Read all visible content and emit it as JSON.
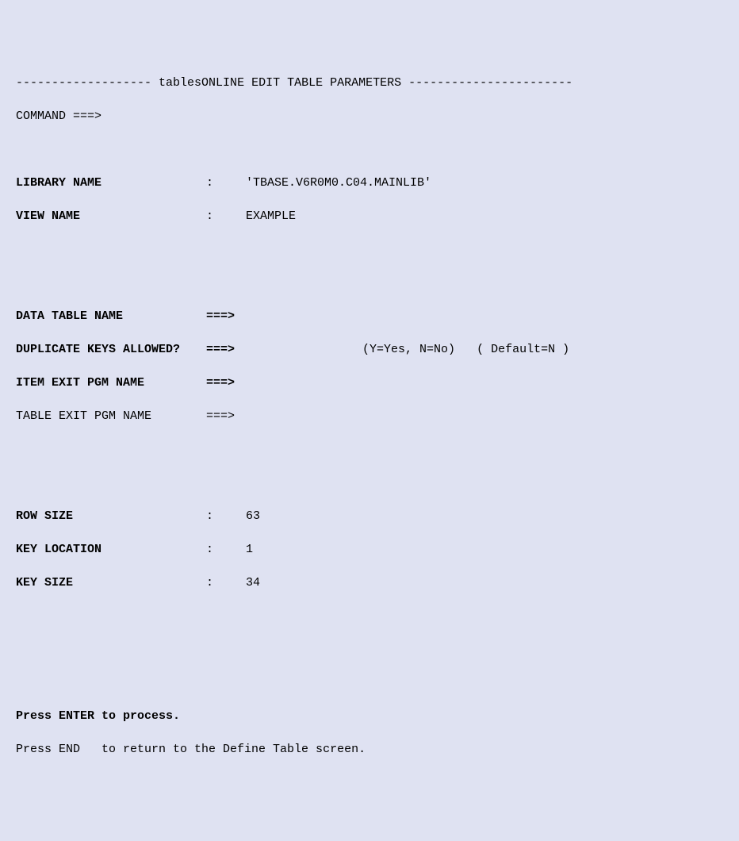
{
  "header": {
    "dash_left": "-------------------",
    "title": "tablesONLINE EDIT TABLE PARAMETERS",
    "dash_right": "-----------------------"
  },
  "command": {
    "label": "COMMAND ===>",
    "value": ""
  },
  "fields": {
    "library_name": {
      "label": "LIBRARY NAME",
      "sep": ":",
      "value": "'TBASE.V6R0M0.C04.MAINLIB'"
    },
    "view_name": {
      "label": "VIEW NAME",
      "sep": ":",
      "value": "EXAMPLE"
    },
    "data_table_name": {
      "label": "DATA TABLE NAME",
      "sep": "===>",
      "value": ""
    },
    "duplicate_keys": {
      "label": "DUPLICATE KEYS ALLOWED?",
      "sep": "===>",
      "value": "",
      "hint1": "(Y=Yes, N=No)",
      "hint2": "( Default=N )"
    },
    "item_exit": {
      "label": "ITEM EXIT PGM NAME",
      "sep": "===>",
      "value": ""
    },
    "table_exit": {
      "label": "TABLE EXIT PGM NAME",
      "sep": "===>",
      "value": ""
    },
    "row_size": {
      "label": "ROW SIZE",
      "sep": ":",
      "value": "63"
    },
    "key_location": {
      "label": "KEY LOCATION",
      "sep": ":",
      "value": "1"
    },
    "key_size": {
      "label": "KEY SIZE",
      "sep": ":",
      "value": "34"
    }
  },
  "footer": {
    "line1": "Press ENTER to process.",
    "line2": "Press END   to return to the Define Table screen."
  }
}
